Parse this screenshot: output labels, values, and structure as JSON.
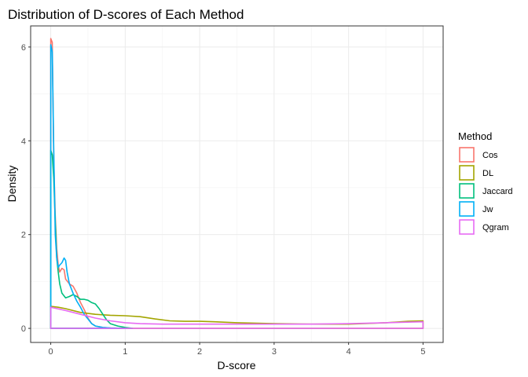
{
  "chart_data": {
    "type": "line",
    "title": "Distribution of D-scores of Each Method",
    "xlabel": "D-score",
    "ylabel": "Density",
    "xlim": [
      -0.27,
      5.27
    ],
    "ylim": [
      -0.3,
      6.45
    ],
    "x_ticks": [
      0,
      1,
      2,
      3,
      4,
      5
    ],
    "x_tick_labels": [
      "0",
      "1",
      "2",
      "3",
      "4",
      "5"
    ],
    "y_ticks": [
      0,
      2,
      4,
      6
    ],
    "y_tick_labels": [
      "0",
      "2",
      "4",
      "6"
    ],
    "grid": true,
    "legend": {
      "title": "Method",
      "placement": "right",
      "items": [
        "Cos",
        "DL",
        "Jaccard",
        "Jw",
        "Qgram"
      ]
    },
    "series": [
      {
        "name": "Cos",
        "color": "#F8766D",
        "x": [
          0,
          0.02,
          0.04,
          0.06,
          0.08,
          0.1,
          0.12,
          0.15,
          0.18,
          0.2,
          0.25,
          0.3,
          0.35,
          0.4,
          0.45,
          0.5,
          0.55,
          0.6,
          0.7,
          0.8,
          1.0
        ],
        "y": [
          6.18,
          6.1,
          3.6,
          2.4,
          1.7,
          1.35,
          1.2,
          1.28,
          1.25,
          1.05,
          0.95,
          0.9,
          0.75,
          0.55,
          0.4,
          0.22,
          0.1,
          0.05,
          0.02,
          0.01,
          0
        ]
      },
      {
        "name": "DL",
        "color": "#A3A500",
        "x": [
          0,
          0.1,
          0.2,
          0.4,
          0.6,
          0.8,
          1.0,
          1.2,
          1.4,
          1.6,
          1.8,
          2.0,
          2.2,
          2.5,
          3.0,
          3.5,
          4.0,
          4.5,
          4.8,
          5.0
        ],
        "y": [
          0.47,
          0.45,
          0.42,
          0.34,
          0.3,
          0.28,
          0.27,
          0.25,
          0.2,
          0.16,
          0.15,
          0.15,
          0.14,
          0.12,
          0.1,
          0.09,
          0.09,
          0.12,
          0.15,
          0.16
        ]
      },
      {
        "name": "Jaccard",
        "color": "#00BF7D",
        "x": [
          0,
          0.02,
          0.04,
          0.06,
          0.08,
          0.1,
          0.12,
          0.15,
          0.2,
          0.25,
          0.3,
          0.35,
          0.4,
          0.45,
          0.5,
          0.55,
          0.6,
          0.65,
          0.7,
          0.75,
          0.8,
          0.9,
          1.0,
          1.1
        ],
        "y": [
          3.8,
          3.7,
          3.2,
          2.3,
          1.5,
          1.2,
          0.95,
          0.75,
          0.65,
          0.68,
          0.72,
          0.68,
          0.62,
          0.62,
          0.6,
          0.55,
          0.52,
          0.42,
          0.3,
          0.18,
          0.1,
          0.05,
          0.02,
          0
        ]
      },
      {
        "name": "Jw",
        "color": "#00B0F6",
        "x": [
          0,
          0.02,
          0.04,
          0.06,
          0.08,
          0.1,
          0.12,
          0.15,
          0.18,
          0.2,
          0.22,
          0.25,
          0.3,
          0.35,
          0.4,
          0.45,
          0.5,
          0.55,
          0.6,
          0.7,
          0.8,
          1.0
        ],
        "y": [
          6.05,
          5.9,
          3.8,
          2.0,
          1.5,
          1.3,
          1.35,
          1.4,
          1.5,
          1.45,
          1.2,
          0.95,
          0.75,
          0.58,
          0.45,
          0.3,
          0.2,
          0.1,
          0.05,
          0.02,
          0.01,
          0
        ]
      },
      {
        "name": "Qgram",
        "color": "#E76BF3",
        "x": [
          0,
          0.2,
          0.4,
          0.6,
          0.8,
          1.0,
          1.2,
          1.5,
          2.0,
          2.5,
          3.0,
          3.5,
          4.0,
          4.5,
          5.0
        ],
        "y": [
          0.45,
          0.38,
          0.3,
          0.22,
          0.16,
          0.12,
          0.1,
          0.09,
          0.09,
          0.09,
          0.09,
          0.09,
          0.1,
          0.12,
          0.14
        ]
      }
    ]
  }
}
